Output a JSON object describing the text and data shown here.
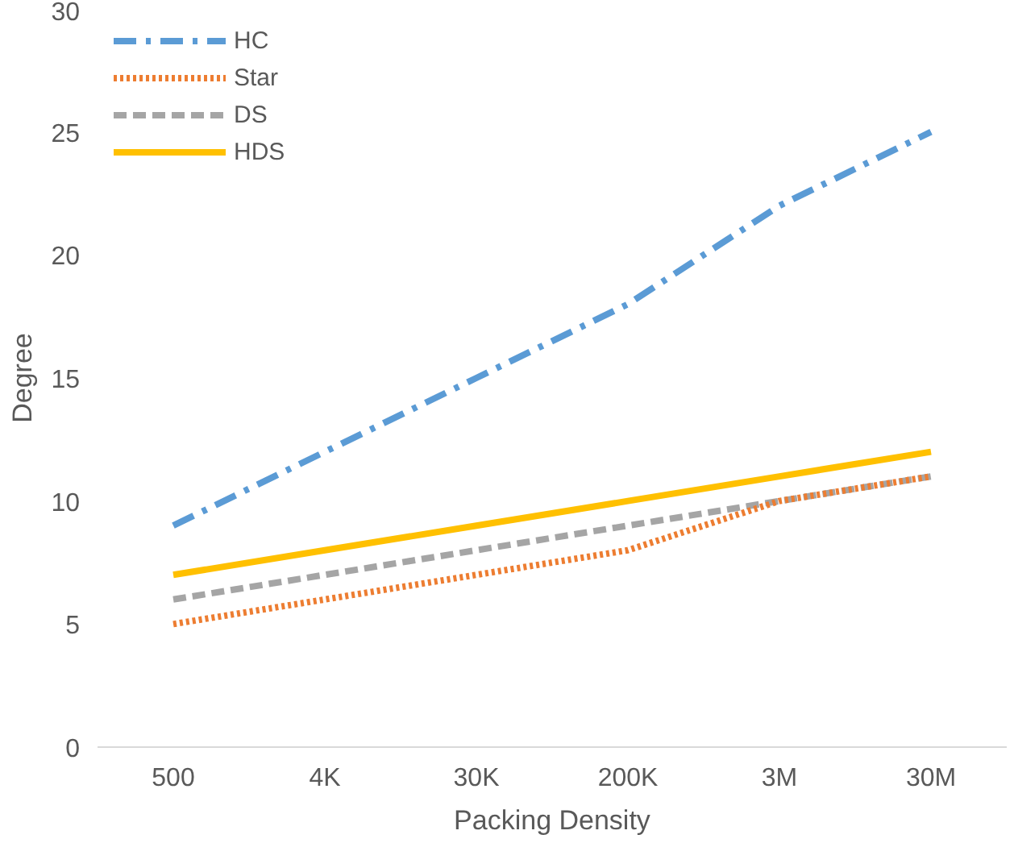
{
  "chart_data": {
    "type": "line",
    "xlabel": "Packing Density",
    "ylabel": "Degree",
    "categories": [
      "500",
      "4K",
      "30K",
      "200K",
      "3M",
      "30M"
    ],
    "ylim": [
      0,
      30
    ],
    "yticks": [
      0,
      5,
      10,
      15,
      20,
      25,
      30
    ],
    "grid": false,
    "legend": "top left",
    "marker": "none",
    "series": [
      {
        "name": "HC",
        "color": "#5b9bd5",
        "line_style": "dashdot",
        "values": [
          9,
          12,
          15,
          18,
          22,
          25
        ]
      },
      {
        "name": "Star",
        "color": "#ed7d31",
        "line_style": "dotted",
        "values": [
          5,
          6,
          7,
          8,
          10,
          11
        ]
      },
      {
        "name": "DS",
        "color": "#a5a5a5",
        "line_style": "dashed",
        "values": [
          6,
          7,
          8,
          9,
          10,
          11
        ]
      },
      {
        "name": "HDS",
        "color": "#ffc000",
        "line_style": "solid",
        "values": [
          7,
          8,
          9,
          10,
          11,
          12
        ]
      }
    ]
  }
}
